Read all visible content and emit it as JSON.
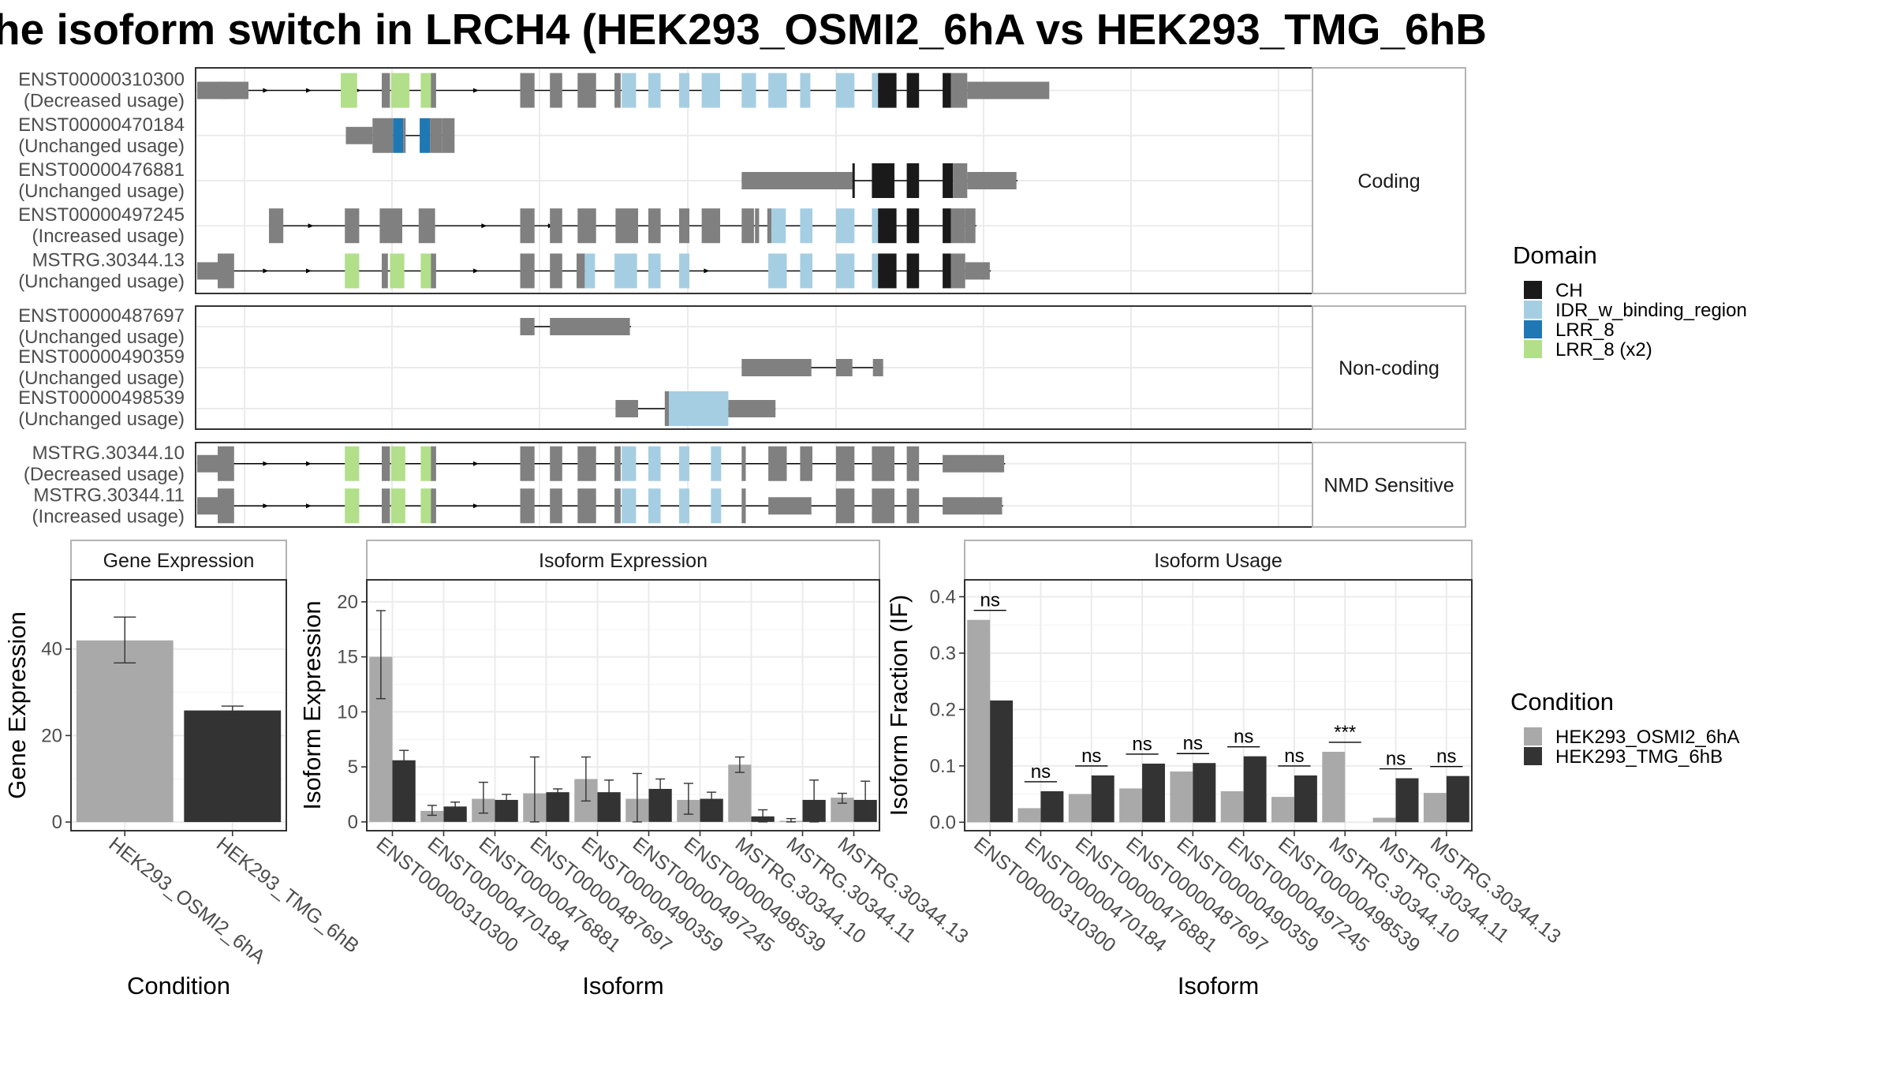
{
  "title": "he isoform switch in LRCH4 (HEK293_OSMI2_6hA vs HEK293_TMG_6hB",
  "colors": {
    "exon": "#808080",
    "CH": "#1a1a1a",
    "IDR": "#a6cee3",
    "LRR8": "#1f78b4",
    "LRR8x2": "#b2df8a",
    "cond1": "#a9a9a9",
    "cond2": "#333333",
    "grid": "#ebebeb",
    "panel_border": "#333333",
    "strip_border": "#b3b3b3"
  },
  "transcripts": {
    "groups": [
      {
        "label": "Coding",
        "items": [
          {
            "id": "ENST00000310300",
            "usage": "(Decreased usage)",
            "pattern": "A"
          },
          {
            "id": "ENST00000470184",
            "usage": "(Unchanged usage)",
            "pattern": "B"
          },
          {
            "id": "ENST00000476881",
            "usage": "(Unchanged usage)",
            "pattern": "C"
          },
          {
            "id": "ENST00000497245",
            "usage": "(Increased usage)",
            "pattern": "D"
          },
          {
            "id": "MSTRG.30344.13",
            "usage": "(Unchanged usage)",
            "pattern": "E"
          }
        ]
      },
      {
        "label": "Non-coding",
        "items": [
          {
            "id": "ENST00000487697",
            "usage": "(Unchanged usage)",
            "pattern": "F"
          },
          {
            "id": "ENST00000490359",
            "usage": "(Unchanged usage)",
            "pattern": "G"
          },
          {
            "id": "ENST00000498539",
            "usage": "(Unchanged usage)",
            "pattern": "H"
          }
        ]
      },
      {
        "label": "NMD Sensitive",
        "items": [
          {
            "id": "MSTRG.30344.10",
            "usage": "(Decreased usage)",
            "pattern": "I"
          },
          {
            "id": "MSTRG.30344.11",
            "usage": "(Increased usage)",
            "pattern": "J"
          }
        ]
      }
    ]
  },
  "legend_domain": {
    "title": "Domain",
    "items": [
      {
        "label": "CH",
        "color": "#1a1a1a"
      },
      {
        "label": "IDR_w_binding_region",
        "color": "#a6cee3"
      },
      {
        "label": "LRR_8",
        "color": "#1f78b4"
      },
      {
        "label": "LRR_8 (x2)",
        "color": "#b2df8a"
      }
    ]
  },
  "legend_condition": {
    "title": "Condition",
    "items": [
      {
        "label": "HEK293_OSMI2_6hA",
        "color": "#a9a9a9"
      },
      {
        "label": "HEK293_TMG_6hB",
        "color": "#333333"
      }
    ]
  },
  "chart_data": [
    {
      "type": "bar",
      "strip": "Gene Expression",
      "xlabel": "Condition",
      "ylabel": "Gene Expression",
      "categories": [
        "HEK293_OSMI2_6hA",
        "HEK293_TMG_6hB"
      ],
      "values": [
        42,
        25.8
      ],
      "error_low": [
        36.8,
        24.8
      ],
      "error_high": [
        47.4,
        26.8
      ],
      "yticks": [
        0,
        20,
        40
      ],
      "ylim": [
        -2,
        56
      ]
    },
    {
      "type": "bar",
      "strip": "Isoform Expression",
      "xlabel": "Isoform",
      "ylabel": "Isoform Expression",
      "categories": [
        "ENST00000310300",
        "ENST00000470184",
        "ENST00000476881",
        "ENST00000487697",
        "ENST00000490359",
        "ENST00000497245",
        "ENST00000498539",
        "MSTRG.30344.10",
        "MSTRG.30344.11",
        "MSTRG.30344.13"
      ],
      "series": [
        {
          "name": "HEK293_OSMI2_6hA",
          "values": [
            15.0,
            1.0,
            2.1,
            2.6,
            3.9,
            2.1,
            2.0,
            5.2,
            0.1,
            2.2
          ],
          "error_low": [
            11.2,
            0.6,
            0.8,
            0.0,
            1.9,
            0.0,
            0.7,
            4.5,
            0.0,
            1.7
          ],
          "error_high": [
            19.2,
            1.5,
            3.6,
            5.9,
            5.9,
            4.4,
            3.5,
            5.9,
            0.3,
            2.6
          ]
        },
        {
          "name": "HEK293_TMG_6hB",
          "values": [
            5.6,
            1.4,
            2.0,
            2.7,
            2.7,
            3.0,
            2.1,
            0.5,
            2.0,
            2.0
          ],
          "error_low": [
            4.7,
            1.0,
            1.5,
            2.4,
            1.6,
            2.1,
            1.5,
            0.0,
            0.0,
            0.3
          ],
          "error_high": [
            6.5,
            1.8,
            2.5,
            3.0,
            3.8,
            3.9,
            2.7,
            1.1,
            3.8,
            3.7
          ]
        }
      ],
      "yticks": [
        0,
        5,
        10,
        15,
        20
      ],
      "ylim": [
        -0.8,
        22
      ]
    },
    {
      "type": "bar",
      "strip": "Isoform Usage",
      "xlabel": "Isoform",
      "ylabel": "Isoform Fraction (IF)",
      "categories": [
        "ENST00000310300",
        "ENST00000470184",
        "ENST00000476881",
        "ENST00000487697",
        "ENST00000490359",
        "ENST00000497245",
        "ENST00000498539",
        "MSTRG.30344.10",
        "MSTRG.30344.11",
        "MSTRG.30344.13"
      ],
      "series": [
        {
          "name": "HEK293_OSMI2_6hA",
          "values": [
            0.359,
            0.025,
            0.05,
            0.06,
            0.09,
            0.055,
            0.045,
            0.125,
            0.008,
            0.052
          ]
        },
        {
          "name": "HEK293_TMG_6hB",
          "values": [
            0.216,
            0.055,
            0.083,
            0.104,
            0.105,
            0.117,
            0.083,
            0.0,
            0.078,
            0.082
          ]
        }
      ],
      "significance": [
        "ns",
        "ns",
        "ns",
        "ns",
        "ns",
        "ns",
        "ns",
        "***",
        "ns",
        "ns"
      ],
      "yticks": [
        0.0,
        0.1,
        0.2,
        0.3,
        0.4
      ],
      "ylim": [
        -0.015,
        0.43
      ]
    }
  ]
}
